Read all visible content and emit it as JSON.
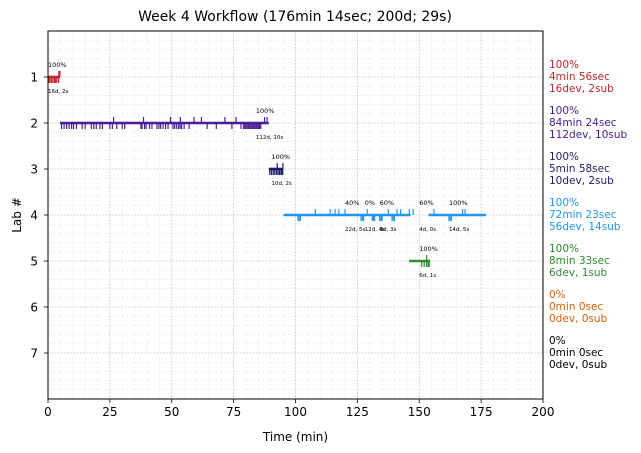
{
  "chart_data": {
    "type": "timeline",
    "title": "Week 4 Workflow (176min 14sec; 200d; 29s)",
    "xlabel": "Time (min)",
    "ylabel": "Lab #",
    "xlim": [
      0,
      200
    ],
    "ylim": [
      0,
      8
    ],
    "xticks": [
      0,
      25,
      50,
      75,
      100,
      125,
      150,
      175,
      200
    ],
    "yticks": [
      1,
      2,
      3,
      4,
      5,
      6,
      7
    ],
    "grid": true,
    "labs": [
      {
        "lab": 1,
        "color": "#c0262d",
        "side": [
          "100%",
          "4min 56sec",
          "16dev, 2sub"
        ],
        "segments": [
          [
            0,
            4.9
          ]
        ],
        "devs": [
          0.3,
          0.8,
          1.4,
          2.0,
          2.6,
          3.1,
          3.6,
          4.3
        ],
        "subs": [
          4.4,
          4.8
        ],
        "annotations": [
          {
            "x": 0,
            "pct": "100%",
            "cnt": "16d, 2s"
          }
        ]
      },
      {
        "lab": 2,
        "color": "#4b1d91",
        "side": [
          "100%",
          "84min 24sec",
          "112dev, 10sub"
        ],
        "segments": [
          [
            4.8,
            89.2
          ]
        ],
        "devs": [
          5.5,
          6.5,
          7.5,
          8.5,
          9.5,
          10.3,
          11.5,
          13.8,
          15,
          17.5,
          18.5,
          19.5,
          21,
          22,
          25,
          26,
          27.8,
          30,
          31,
          37.5,
          38,
          39,
          39.6,
          41,
          42,
          44,
          44.8,
          45.5,
          46.5,
          47.5,
          48.5,
          50.5,
          51.2,
          52,
          52.8,
          53.4,
          54,
          55,
          57,
          64.3,
          68,
          74.3,
          78,
          79,
          79.5,
          80,
          80.5,
          81,
          81.5,
          82,
          82.5,
          83,
          83.5,
          84,
          84.5,
          85,
          85.5,
          86
        ],
        "subs": [
          26.5,
          38.6,
          49.5,
          53.5,
          59,
          62,
          71.5,
          76,
          87.5,
          88.5
        ],
        "annotations": [
          {
            "x": 84,
            "pct": "100%",
            "cnt": "112d, 10s"
          }
        ]
      },
      {
        "lab": 3,
        "color": "#1f1c6b",
        "side": [
          "100%",
          "5min 58sec",
          "10dev, 2sub"
        ],
        "segments": [
          [
            89.2,
            95.1
          ]
        ],
        "devs": [
          89.6,
          90.3,
          91,
          91.6,
          92.3,
          92.9,
          93.5,
          94.1,
          94.5,
          94.8
        ],
        "subs": [
          92.6,
          94.9
        ],
        "annotations": [
          {
            "x": 90.3,
            "pct": "100%",
            "cnt": "10d, 2s"
          }
        ]
      },
      {
        "lab": 4,
        "color": "#2196f3",
        "side": [
          "100%",
          "72min 23sec",
          "56dev, 14sub"
        ],
        "segments": [
          [
            95.2,
            146.5
          ],
          [
            153.7,
            177
          ]
        ],
        "devs": [
          101,
          101.5,
          102,
          126.5,
          127,
          127.5,
          131,
          131.5,
          132,
          134,
          134.5,
          135,
          139,
          139.5,
          140,
          162,
          162.5,
          163
        ],
        "subs": [
          108,
          114,
          116,
          117.5,
          120,
          129,
          137.5,
          141,
          142.5,
          146,
          147.5,
          156,
          167.5,
          168.5
        ],
        "annotations": [
          {
            "x": 120,
            "pct": "40%",
            "cnt": "22d, 5s"
          },
          {
            "x": 128,
            "pct": "0%",
            "cnt": "12d, 4s"
          },
          {
            "x": 134,
            "pct": "60%",
            "cnt": "8d, 3s"
          },
          {
            "x": 150,
            "pct": "60%",
            "cnt": "4d, 0s"
          },
          {
            "x": 162,
            "pct": "100%",
            "cnt": "14d, 5s"
          }
        ]
      },
      {
        "lab": 5,
        "color": "#2e8b2e",
        "side": [
          "100%",
          "8min 33sec",
          "6dev, 1sub"
        ],
        "segments": [
          [
            145.9,
            154.4
          ]
        ],
        "devs": [
          151,
          152,
          153,
          153.6,
          154
        ],
        "subs": [
          153
        ],
        "annotations": [
          {
            "x": 150,
            "pct": "100%",
            "cnt": "6d, 1s"
          }
        ]
      },
      {
        "lab": 6,
        "color": "#d95f02",
        "side": [
          "0%",
          "0min 0sec",
          "0dev, 0sub"
        ],
        "segments": [],
        "devs": [],
        "subs": [],
        "annotations": []
      },
      {
        "lab": 7,
        "color": "#000000",
        "side": [
          "0%",
          "0min 0sec",
          "0dev, 0sub"
        ],
        "segments": [],
        "devs": [],
        "subs": [],
        "annotations": []
      }
    ]
  }
}
